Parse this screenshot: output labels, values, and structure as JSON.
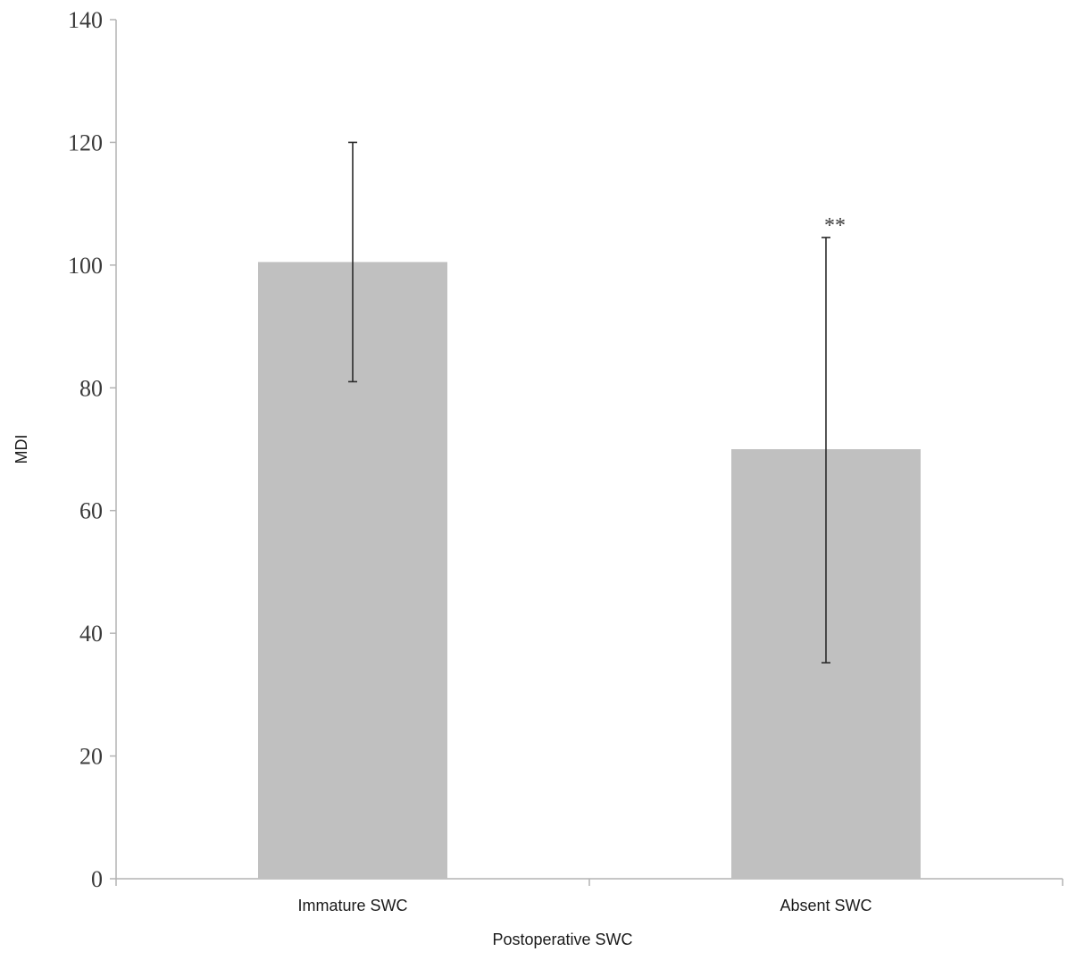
{
  "chart_data": {
    "type": "bar",
    "title": "",
    "xlabel": "Postoperative SWC",
    "ylabel": "MDI",
    "ylim": [
      0,
      140
    ],
    "yticks": [
      0,
      20,
      40,
      60,
      80,
      100,
      120,
      140
    ],
    "categories": [
      "Immature SWC",
      "Absent SWC"
    ],
    "values": [
      100.5,
      70
    ],
    "error_upper": [
      120,
      104.5
    ],
    "error_lower": [
      81,
      35.2
    ],
    "annotations": [
      "",
      "**"
    ],
    "bar_color": "#c0c0c0",
    "grid": false
  }
}
